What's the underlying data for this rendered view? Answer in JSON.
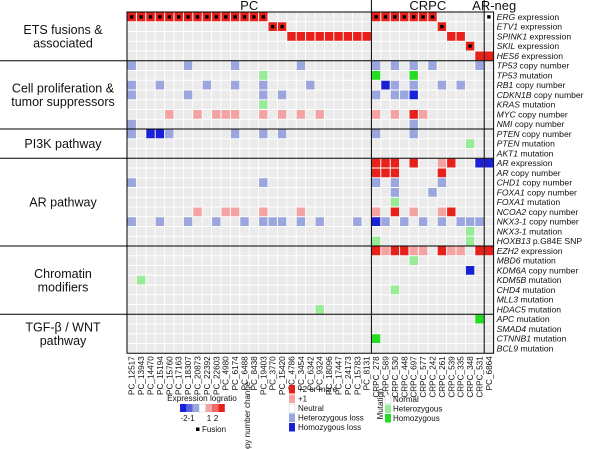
{
  "chart_data": {
    "type": "heatmap",
    "group_headers": [
      "PC",
      "CRPC",
      "AR-neg"
    ],
    "columns": [
      "PC_12517",
      "PC_13943",
      "PC_14470",
      "PC_15194",
      "PC_15760",
      "PC_17163",
      "PC_18307",
      "PC_20873",
      "PC_22392",
      "PC_22603",
      "PC_4980",
      "PC_6174",
      "PC_6488",
      "PC_8438",
      "PC_19403",
      "PC_3770",
      "PC_15420",
      "PC_4786",
      "PC_3454",
      "PC_6342",
      "PC_9324",
      "PC_18096",
      "PC_17447",
      "PC_24173",
      "PC_15783",
      "PC_8131",
      "CRPC_278",
      "CRPC_589",
      "CRPC_530",
      "CRPC_448",
      "CRPC_697",
      "CRPC_577",
      "CRPC_242",
      "CRPC_261",
      "CRPC_539",
      "CRPC_335",
      "CRPC_348",
      "CRPC_531",
      "PC_6864"
    ],
    "group_sizes": [
      26,
      12,
      1
    ],
    "sections": [
      {
        "name": "ETS fusions & associated",
        "rows": [
          "ERG expression",
          "ETV1 expression",
          "SPINK1 expression",
          "SKIL expression",
          "HES6 expression"
        ]
      },
      {
        "name": "Cell proliferation & tumor suppressors",
        "rows": [
          "TP53 copy number",
          "TP53 mutation",
          "RB1 copy number",
          "CDKN1B copy number",
          "KRAS mutation",
          "MYC copy number",
          "NMI copy number"
        ]
      },
      {
        "name": "PI3K pathway",
        "rows": [
          "PTEN copy number",
          "PTEN mutation",
          "AKT1 mutation"
        ]
      },
      {
        "name": "AR pathway",
        "rows": [
          "AR expression",
          "AR copy number",
          "CHD1 copy number",
          "FOXA1 copy number",
          "FOXA1 mutation",
          "NCOA2 copy number",
          "NKX3-1 copy number",
          "NKX3-1 mutation",
          "HOXB13 p.G84E SNP"
        ]
      },
      {
        "name": "Chromatin modifiers",
        "rows": [
          "EZH2 expression",
          "MBD6 mutation",
          "KDM6A copy number",
          "KDM5B mutation",
          "CHD4 mutation",
          "MLL3 mutation",
          "HDAC5 mutation"
        ]
      },
      {
        "name": "TGF-β / WNT pathway",
        "rows": [
          "APC mutation",
          "SMAD4 mutation",
          "CTNNB1 mutation",
          "BCL9 mutation"
        ]
      }
    ],
    "cells": [
      [
        0,
        0,
        "#e8201a",
        1
      ],
      [
        0,
        1,
        "#e8201a",
        1
      ],
      [
        0,
        2,
        "#e8201a",
        1
      ],
      [
        0,
        3,
        "#e8201a",
        1
      ],
      [
        0,
        4,
        "#e8201a",
        1
      ],
      [
        0,
        5,
        "#e8201a",
        1
      ],
      [
        0,
        6,
        "#e8201a",
        1
      ],
      [
        0,
        7,
        "#e8201a",
        1
      ],
      [
        0,
        8,
        "#e8201a",
        1
      ],
      [
        0,
        9,
        "#e8201a",
        1
      ],
      [
        0,
        10,
        "#e8201a",
        1
      ],
      [
        0,
        11,
        "#e8201a",
        1
      ],
      [
        0,
        12,
        "#e8201a",
        1
      ],
      [
        0,
        13,
        "#e8201a",
        1
      ],
      [
        0,
        14,
        "#e8201a",
        1
      ],
      [
        0,
        26,
        "#e8201a",
        1
      ],
      [
        0,
        27,
        "#e8201a",
        1
      ],
      [
        0,
        28,
        "#e8201a",
        1
      ],
      [
        0,
        29,
        "#e8201a",
        1
      ],
      [
        0,
        30,
        "#e8201a",
        1
      ],
      [
        0,
        31,
        "#e8201a",
        1
      ],
      [
        0,
        32,
        "#e8201a",
        1
      ],
      [
        0,
        38,
        "#ffffff",
        1
      ],
      [
        1,
        15,
        "#e8201a",
        1
      ],
      [
        1,
        16,
        "#e8201a",
        1
      ],
      [
        1,
        33,
        "#e8201a",
        1
      ],
      [
        2,
        17,
        "#e8201a",
        0
      ],
      [
        2,
        18,
        "#e8201a",
        0
      ],
      [
        2,
        19,
        "#e8201a",
        0
      ],
      [
        2,
        20,
        "#e8201a",
        0
      ],
      [
        2,
        21,
        "#e8201a",
        0
      ],
      [
        2,
        22,
        "#e8201a",
        0
      ],
      [
        2,
        23,
        "#e8201a",
        0
      ],
      [
        2,
        24,
        "#e8201a",
        0
      ],
      [
        2,
        25,
        "#e8201a",
        0
      ],
      [
        2,
        34,
        "#e8201a",
        0
      ],
      [
        2,
        35,
        "#e8201a",
        0
      ],
      [
        3,
        36,
        "#e8201a",
        1
      ],
      [
        4,
        37,
        "#e8201a",
        0
      ],
      [
        4,
        38,
        "#e8201a",
        0
      ],
      [
        5,
        0,
        "#9aa6dd",
        0
      ],
      [
        5,
        6,
        "#9aa6dd",
        0
      ],
      [
        5,
        11,
        "#9aa6dd",
        0
      ],
      [
        5,
        18,
        "#9aa6dd",
        0
      ],
      [
        5,
        26,
        "#9aa6dd",
        0
      ],
      [
        5,
        28,
        "#9aa6dd",
        0
      ],
      [
        5,
        30,
        "#9aa6dd",
        0
      ],
      [
        5,
        32,
        "#9aa6dd",
        0
      ],
      [
        5,
        37,
        "#9aa6dd",
        0
      ],
      [
        6,
        14,
        "#98ec98",
        0
      ],
      [
        6,
        26,
        "#22dd22",
        0
      ],
      [
        6,
        30,
        "#22dd22",
        0
      ],
      [
        7,
        0,
        "#9aa6dd",
        0
      ],
      [
        7,
        3,
        "#9aa6dd",
        0
      ],
      [
        7,
        8,
        "#9aa6dd",
        0
      ],
      [
        7,
        11,
        "#9aa6dd",
        0
      ],
      [
        7,
        14,
        "#9aa6dd",
        0
      ],
      [
        7,
        19,
        "#9aa6dd",
        0
      ],
      [
        7,
        27,
        "#1a1fd8",
        0
      ],
      [
        7,
        28,
        "#9aa6dd",
        0
      ],
      [
        7,
        30,
        "#9aa6dd",
        0
      ],
      [
        7,
        33,
        "#9aa6dd",
        0
      ],
      [
        7,
        35,
        "#9aa6dd",
        0
      ],
      [
        8,
        0,
        "#9aa6dd",
        0
      ],
      [
        8,
        6,
        "#9aa6dd",
        0
      ],
      [
        8,
        14,
        "#9aa6dd",
        0
      ],
      [
        8,
        16,
        "#9aa6dd",
        0
      ],
      [
        8,
        26,
        "#9aa6dd",
        0
      ],
      [
        8,
        28,
        "#9aa6dd",
        0
      ],
      [
        8,
        29,
        "#9aa6dd",
        0
      ],
      [
        8,
        30,
        "#1a1fd8",
        0
      ],
      [
        9,
        14,
        "#98ec98",
        0
      ],
      [
        10,
        4,
        "#f4a3a3",
        0
      ],
      [
        10,
        7,
        "#f4a3a3",
        0
      ],
      [
        10,
        9,
        "#f4a3a3",
        0
      ],
      [
        10,
        10,
        "#f4a3a3",
        0
      ],
      [
        10,
        11,
        "#f4a3a3",
        0
      ],
      [
        10,
        14,
        "#f4a3a3",
        0
      ],
      [
        10,
        16,
        "#f4a3a3",
        0
      ],
      [
        10,
        18,
        "#f4a3a3",
        0
      ],
      [
        10,
        20,
        "#f4a3a3",
        0
      ],
      [
        10,
        26,
        "#f4a3a3",
        0
      ],
      [
        10,
        28,
        "#f4a3a3",
        0
      ],
      [
        10,
        30,
        "#e8201a",
        0
      ],
      [
        10,
        31,
        "#f4a3a3",
        0
      ],
      [
        11,
        0,
        "#9aa6dd",
        0
      ],
      [
        11,
        30,
        "#9aa6dd",
        0
      ],
      [
        12,
        0,
        "#9aa6dd",
        0
      ],
      [
        12,
        2,
        "#1a1fd8",
        0
      ],
      [
        12,
        3,
        "#1a1fd8",
        0
      ],
      [
        12,
        4,
        "#9aa6dd",
        0
      ],
      [
        12,
        11,
        "#9aa6dd",
        0
      ],
      [
        12,
        14,
        "#9aa6dd",
        0
      ],
      [
        12,
        16,
        "#9aa6dd",
        0
      ],
      [
        12,
        26,
        "#9aa6dd",
        0
      ],
      [
        12,
        30,
        "#9aa6dd",
        0
      ],
      [
        13,
        36,
        "#98ec98",
        0
      ],
      [
        15,
        26,
        "#e8201a",
        0
      ],
      [
        15,
        27,
        "#e8201a",
        0
      ],
      [
        15,
        28,
        "#e8201a",
        0
      ],
      [
        15,
        30,
        "#e8201a",
        0
      ],
      [
        15,
        33,
        "#f4a3a3",
        0
      ],
      [
        15,
        34,
        "#e8201a",
        0
      ],
      [
        15,
        37,
        "#1a1fd8",
        0
      ],
      [
        15,
        38,
        "#1a1fd8",
        0
      ],
      [
        16,
        26,
        "#e8201a",
        0
      ],
      [
        16,
        27,
        "#e8201a",
        0
      ],
      [
        16,
        28,
        "#e8201a",
        0
      ],
      [
        16,
        33,
        "#e8201a",
        0
      ],
      [
        17,
        0,
        "#9aa6dd",
        0
      ],
      [
        17,
        14,
        "#9aa6dd",
        0
      ],
      [
        17,
        26,
        "#9aa6dd",
        0
      ],
      [
        17,
        28,
        "#9aa6dd",
        0
      ],
      [
        17,
        33,
        "#9aa6dd",
        0
      ],
      [
        18,
        28,
        "#9aa6dd",
        0
      ],
      [
        18,
        32,
        "#9aa6dd",
        0
      ],
      [
        19,
        28,
        "#98ec98",
        0
      ],
      [
        20,
        7,
        "#f4a3a3",
        0
      ],
      [
        20,
        10,
        "#f4a3a3",
        0
      ],
      [
        20,
        11,
        "#f4a3a3",
        0
      ],
      [
        20,
        14,
        "#f4a3a3",
        0
      ],
      [
        20,
        18,
        "#f4a3a3",
        0
      ],
      [
        20,
        26,
        "#f4a3a3",
        0
      ],
      [
        20,
        28,
        "#e8201a",
        0
      ],
      [
        20,
        30,
        "#f4a3a3",
        0
      ],
      [
        20,
        33,
        "#f4a3a3",
        0
      ],
      [
        20,
        34,
        "#e8201a",
        0
      ],
      [
        21,
        0,
        "#9aa6dd",
        0
      ],
      [
        21,
        3,
        "#9aa6dd",
        0
      ],
      [
        21,
        6,
        "#9aa6dd",
        0
      ],
      [
        21,
        9,
        "#9aa6dd",
        0
      ],
      [
        21,
        12,
        "#9aa6dd",
        0
      ],
      [
        21,
        14,
        "#9aa6dd",
        0
      ],
      [
        21,
        15,
        "#9aa6dd",
        0
      ],
      [
        21,
        16,
        "#9aa6dd",
        0
      ],
      [
        21,
        18,
        "#9aa6dd",
        0
      ],
      [
        21,
        20,
        "#9aa6dd",
        0
      ],
      [
        21,
        24,
        "#9aa6dd",
        0
      ],
      [
        21,
        26,
        "#1a1fd8",
        0
      ],
      [
        21,
        27,
        "#9aa6dd",
        0
      ],
      [
        21,
        29,
        "#9aa6dd",
        0
      ],
      [
        21,
        31,
        "#9aa6dd",
        0
      ],
      [
        21,
        33,
        "#9aa6dd",
        0
      ],
      [
        21,
        35,
        "#9aa6dd",
        0
      ],
      [
        21,
        36,
        "#9aa6dd",
        0
      ],
      [
        21,
        37,
        "#9aa6dd",
        0
      ],
      [
        22,
        36,
        "#98ec98",
        0
      ],
      [
        23,
        26,
        "#98ec98",
        0
      ],
      [
        23,
        36,
        "#98ec98",
        0
      ],
      [
        24,
        26,
        "#e8201a",
        0
      ],
      [
        24,
        27,
        "#f4a3a3",
        0
      ],
      [
        24,
        28,
        "#e8201a",
        0
      ],
      [
        24,
        29,
        "#e8201a",
        0
      ],
      [
        24,
        30,
        "#f4a3a3",
        0
      ],
      [
        24,
        31,
        "#f4a3a3",
        0
      ],
      [
        24,
        33,
        "#e8201a",
        0
      ],
      [
        24,
        34,
        "#f4a3a3",
        0
      ],
      [
        24,
        35,
        "#f4a3a3",
        0
      ],
      [
        24,
        37,
        "#e8201a",
        0
      ],
      [
        24,
        38,
        "#e8201a",
        0
      ],
      [
        25,
        30,
        "#98ec98",
        0
      ],
      [
        26,
        36,
        "#1a1fd8",
        0
      ],
      [
        27,
        1,
        "#98ec98",
        0
      ],
      [
        28,
        28,
        "#98ec98",
        0
      ],
      [
        30,
        20,
        "#98ec98",
        0
      ],
      [
        31,
        37,
        "#22dd22",
        0
      ],
      [
        33,
        26,
        "#22dd22",
        0
      ]
    ],
    "legend": {
      "expression": {
        "title": "Expression logratio",
        "ticks": [
          "-2",
          "-1",
          "1",
          "2"
        ],
        "colors": [
          "#1a1fd8",
          "#5a64e0",
          "#9aa6dd",
          "#ffffff",
          "#f4a3a3",
          "#ef6a66",
          "#e8201a"
        ]
      },
      "fusion": {
        "label": "Fusion"
      },
      "copy_number": {
        "title": "Copy number change",
        "items": [
          {
            "label": "+2 or more",
            "color": "#e8201a"
          },
          {
            "label": "+1",
            "color": "#f4a3a3"
          },
          {
            "label": "Neutral",
            "color": "#ffffff"
          },
          {
            "label": "Heterozygous loss",
            "color": "#9aa6dd"
          },
          {
            "label": "Homozygous loss",
            "color": "#1a1fd8"
          }
        ]
      },
      "mutation": {
        "title": "Mutation",
        "items": [
          {
            "label": "Normal",
            "color": "#ffffff"
          },
          {
            "label": "Heterozygous",
            "color": "#98ec98"
          },
          {
            "label": "Homozygous",
            "color": "#22dd22"
          }
        ]
      }
    }
  }
}
